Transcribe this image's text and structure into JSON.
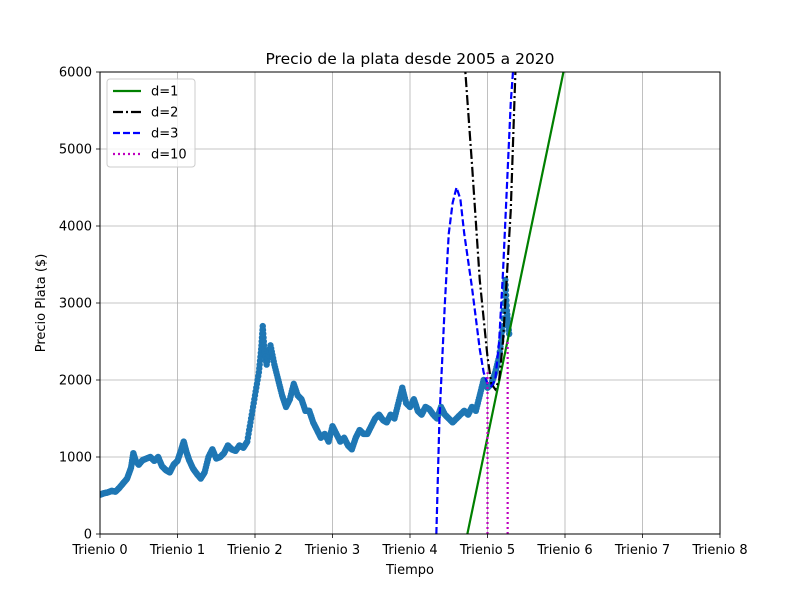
{
  "chart_data": {
    "type": "line",
    "title": "Precio de la plata desde 2005 a 2020",
    "xlabel": "Tiempo",
    "ylabel": "Precio Plata ($)",
    "xlim": [
      0,
      8
    ],
    "ylim": [
      0,
      6000
    ],
    "x_ticks": [
      {
        "value": 0,
        "label": "Trienio 0"
      },
      {
        "value": 1,
        "label": "Trienio 1"
      },
      {
        "value": 2,
        "label": "Trienio 2"
      },
      {
        "value": 3,
        "label": "Trienio 3"
      },
      {
        "value": 4,
        "label": "Trienio 4"
      },
      {
        "value": 5,
        "label": "Trienio 5"
      },
      {
        "value": 6,
        "label": "Trienio 6"
      },
      {
        "value": 7,
        "label": "Trienio 7"
      },
      {
        "value": 8,
        "label": "Trienio 8"
      }
    ],
    "y_ticks": [
      0,
      1000,
      2000,
      3000,
      4000,
      5000,
      6000
    ],
    "grid": true,
    "legend_position": "top-left",
    "scatter": {
      "color": "#1f77b4",
      "points": [
        [
          0.0,
          510
        ],
        [
          0.05,
          530
        ],
        [
          0.1,
          540
        ],
        [
          0.15,
          560
        ],
        [
          0.2,
          550
        ],
        [
          0.25,
          600
        ],
        [
          0.3,
          660
        ],
        [
          0.35,
          720
        ],
        [
          0.4,
          860
        ],
        [
          0.43,
          1050
        ],
        [
          0.46,
          950
        ],
        [
          0.5,
          900
        ],
        [
          0.55,
          960
        ],
        [
          0.6,
          980
        ],
        [
          0.65,
          1000
        ],
        [
          0.7,
          950
        ],
        [
          0.75,
          1000
        ],
        [
          0.8,
          880
        ],
        [
          0.85,
          830
        ],
        [
          0.9,
          800
        ],
        [
          0.95,
          900
        ],
        [
          1.0,
          950
        ],
        [
          1.05,
          1100
        ],
        [
          1.08,
          1200
        ],
        [
          1.12,
          1050
        ],
        [
          1.15,
          960
        ],
        [
          1.2,
          850
        ],
        [
          1.25,
          780
        ],
        [
          1.3,
          720
        ],
        [
          1.35,
          800
        ],
        [
          1.4,
          1000
        ],
        [
          1.45,
          1100
        ],
        [
          1.5,
          980
        ],
        [
          1.55,
          1000
        ],
        [
          1.6,
          1050
        ],
        [
          1.65,
          1150
        ],
        [
          1.7,
          1100
        ],
        [
          1.75,
          1080
        ],
        [
          1.8,
          1150
        ],
        [
          1.85,
          1120
        ],
        [
          1.9,
          1200
        ],
        [
          1.95,
          1500
        ],
        [
          2.0,
          1800
        ],
        [
          2.05,
          2100
        ],
        [
          2.08,
          2400
        ],
        [
          2.1,
          2700
        ],
        [
          2.12,
          2400
        ],
        [
          2.15,
          2200
        ],
        [
          2.2,
          2450
        ],
        [
          2.25,
          2200
        ],
        [
          2.3,
          2000
        ],
        [
          2.35,
          1800
        ],
        [
          2.4,
          1650
        ],
        [
          2.45,
          1750
        ],
        [
          2.5,
          1950
        ],
        [
          2.55,
          1800
        ],
        [
          2.6,
          1750
        ],
        [
          2.65,
          1600
        ],
        [
          2.7,
          1600
        ],
        [
          2.75,
          1450
        ],
        [
          2.8,
          1350
        ],
        [
          2.85,
          1250
        ],
        [
          2.9,
          1300
        ],
        [
          2.95,
          1200
        ],
        [
          3.0,
          1400
        ],
        [
          3.05,
          1300
        ],
        [
          3.1,
          1200
        ],
        [
          3.15,
          1250
        ],
        [
          3.2,
          1150
        ],
        [
          3.25,
          1100
        ],
        [
          3.3,
          1250
        ],
        [
          3.35,
          1350
        ],
        [
          3.4,
          1300
        ],
        [
          3.45,
          1300
        ],
        [
          3.5,
          1400
        ],
        [
          3.55,
          1500
        ],
        [
          3.6,
          1550
        ],
        [
          3.65,
          1480
        ],
        [
          3.7,
          1450
        ],
        [
          3.75,
          1550
        ],
        [
          3.8,
          1500
        ],
        [
          3.85,
          1700
        ],
        [
          3.9,
          1900
        ],
        [
          3.95,
          1700
        ],
        [
          4.0,
          1650
        ],
        [
          4.05,
          1750
        ],
        [
          4.1,
          1600
        ],
        [
          4.15,
          1550
        ],
        [
          4.2,
          1650
        ],
        [
          4.25,
          1620
        ],
        [
          4.3,
          1550
        ],
        [
          4.35,
          1500
        ],
        [
          4.4,
          1650
        ],
        [
          4.45,
          1550
        ],
        [
          4.5,
          1500
        ],
        [
          4.55,
          1450
        ],
        [
          4.6,
          1500
        ],
        [
          4.65,
          1550
        ],
        [
          4.7,
          1600
        ],
        [
          4.75,
          1550
        ],
        [
          4.8,
          1650
        ],
        [
          4.85,
          1600
        ],
        [
          4.9,
          1800
        ],
        [
          4.95,
          2000
        ],
        [
          5.0,
          1900
        ],
        [
          5.05,
          1950
        ],
        [
          5.1,
          2100
        ],
        [
          5.15,
          2300
        ],
        [
          5.2,
          2700
        ],
        [
          5.23,
          3300
        ],
        [
          5.25,
          2900
        ],
        [
          5.28,
          2600
        ]
      ]
    },
    "series": [
      {
        "name": "d=1",
        "color": "#008000",
        "dash": "solid",
        "x": [
          4.74,
          5.98
        ],
        "y": [
          0,
          6000
        ]
      },
      {
        "name": "d=2",
        "color": "#000000",
        "dash": "dashdot",
        "x": [
          4.6,
          4.7,
          4.8,
          4.9,
          5.0,
          5.05,
          5.1,
          5.15,
          5.2,
          5.3,
          5.4
        ],
        "y": [
          7800,
          6200,
          4800,
          3300,
          2300,
          1950,
          1880,
          2000,
          2500,
          4200,
          7200
        ]
      },
      {
        "name": "d=3",
        "color": "#0000ff",
        "dash": "dashed",
        "x": [
          4.34,
          4.38,
          4.45,
          4.5,
          4.55,
          4.6,
          4.65,
          4.7,
          4.8,
          4.9,
          4.95,
          5.0,
          5.05,
          5.1,
          5.15,
          5.2,
          5.25,
          5.3,
          5.35
        ],
        "y": [
          0,
          1500,
          3000,
          3900,
          4300,
          4500,
          4350,
          3900,
          3200,
          2400,
          2100,
          1950,
          1920,
          2000,
          2500,
          3400,
          4500,
          5600,
          6300
        ]
      },
      {
        "name": "d=10",
        "color": "#bf00bf",
        "dash": "dotted",
        "segments": [
          {
            "x": [
              5.0,
              5.0
            ],
            "y": [
              0,
              2100
            ]
          },
          {
            "x": [
              5.26,
              5.26
            ],
            "y": [
              0,
              2500
            ]
          }
        ]
      }
    ]
  }
}
